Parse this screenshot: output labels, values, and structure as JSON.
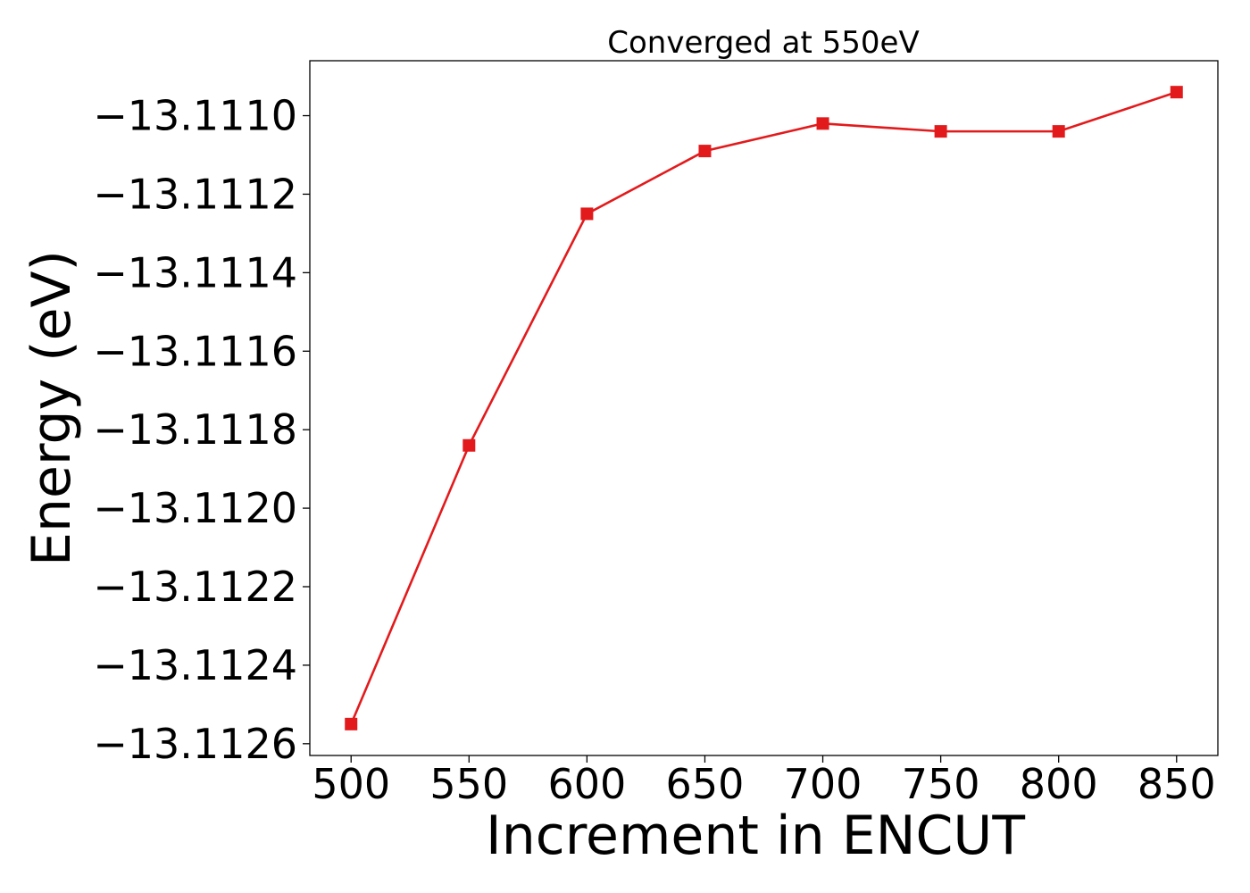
{
  "chart_data": {
    "type": "line",
    "title": "Converged at 550eV",
    "xlabel": "Increment in ENCUT",
    "ylabel": "Energy (eV)",
    "x": [
      500,
      550,
      600,
      650,
      700,
      750,
      800,
      850
    ],
    "series": [
      {
        "values": [
          -13.11255,
          -13.11184,
          -13.11125,
          -13.11109,
          -13.11102,
          -13.11104,
          -13.11104,
          -13.11094
        ],
        "color": "#e31a1c",
        "marker": "square"
      }
    ],
    "xticks": [
      500,
      550,
      600,
      650,
      700,
      750,
      800,
      850
    ],
    "xtick_labels": [
      "500",
      "550",
      "600",
      "650",
      "700",
      "750",
      "800",
      "850"
    ],
    "yticks": [
      -13.1126,
      -13.1124,
      -13.1122,
      -13.112,
      -13.1118,
      -13.1116,
      -13.1114,
      -13.1112,
      -13.111
    ],
    "ytick_labels": [
      "−13.1126",
      "−13.1124",
      "−13.1122",
      "−13.1120",
      "−13.1118",
      "−13.1116",
      "−13.1114",
      "−13.1112",
      "−13.1110"
    ],
    "xlim": [
      482.5,
      867.5
    ],
    "ylim": [
      -13.11263,
      -13.11086
    ],
    "grid": false,
    "legend": "none"
  }
}
